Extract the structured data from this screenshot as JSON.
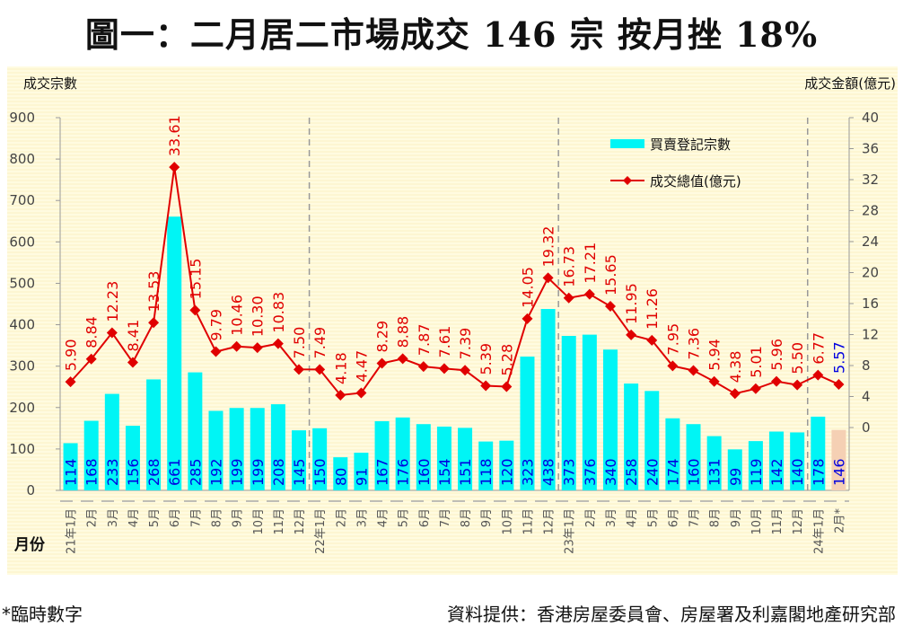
{
  "title": "圖一：二月居二市場成交 146 宗  按月挫 18%",
  "footnote": "*臨時數字",
  "source": "資料提供：香港房屋委員會、房屋署及利嘉閣地產研究部",
  "colors": {
    "bar": "#00f5f5",
    "bar_provisional": "#f5d0b4",
    "line": "#e00000",
    "bar_label": "#0000e0",
    "line_label": "#e00000",
    "line_label_provisional": "#0000e0"
  },
  "chart_data": {
    "type": "bar+line",
    "title": "圖一：二月居二市場成交 146 宗  按月挫 18%",
    "xlabel": "月份",
    "ylabel_left": "成交宗數",
    "ylabel_right": "成交金額(億元)",
    "ylim_left": [
      0,
      900
    ],
    "yticks_left": [
      "0",
      "100",
      "200",
      "300",
      "400",
      "500",
      "600",
      "700",
      "800",
      "900"
    ],
    "ylim_right": [
      0,
      40
    ],
    "yticks_right": [
      "0",
      "4",
      "8",
      "12",
      "16",
      "20",
      "24",
      "28",
      "32",
      "36",
      "40"
    ],
    "legend": [
      "買賣登記宗數",
      "成交總值(億元)"
    ],
    "legend_position": "top-right",
    "year_separators_after": [
      12,
      24,
      36
    ],
    "categories": [
      "21年1月",
      "2月",
      "3月",
      "4月",
      "5月",
      "6月",
      "7月",
      "8月",
      "9月",
      "10月",
      "11月",
      "12月",
      "22年1月",
      "2月",
      "3月",
      "4月",
      "5月",
      "6月",
      "7月",
      "8月",
      "9月",
      "10月",
      "11月",
      "12月",
      "23年1月",
      "2月",
      "3月",
      "4月",
      "5月",
      "6月",
      "7月",
      "8月",
      "9月",
      "10月",
      "11月",
      "12月",
      "24年1月",
      "2月*"
    ],
    "series": [
      {
        "name": "買賣登記宗數",
        "type": "bar",
        "axis": "left",
        "values": [
          114,
          168,
          233,
          156,
          268,
          661,
          285,
          192,
          199,
          199,
          208,
          145,
          150,
          80,
          91,
          167,
          176,
          160,
          154,
          151,
          118,
          120,
          323,
          438,
          373,
          376,
          340,
          258,
          240,
          174,
          160,
          131,
          99,
          119,
          142,
          140,
          178,
          146
        ]
      },
      {
        "name": "成交總值(億元)",
        "type": "line",
        "axis": "right",
        "values": [
          5.9,
          8.84,
          12.23,
          8.41,
          13.53,
          33.61,
          15.15,
          9.79,
          10.46,
          10.3,
          10.83,
          7.5,
          7.49,
          4.18,
          4.47,
          8.29,
          8.88,
          7.87,
          7.61,
          7.39,
          5.39,
          5.28,
          14.05,
          19.32,
          16.73,
          17.21,
          15.65,
          11.95,
          11.26,
          7.95,
          7.36,
          5.94,
          4.38,
          5.01,
          5.96,
          5.5,
          6.77,
          5.57
        ],
        "labels": [
          "5.90",
          "8.84",
          "12.23",
          "8.41",
          "13.53",
          "33.61",
          "15.15",
          "9.79",
          "10.46",
          "10.30",
          "10.83",
          "7.50",
          "7.49",
          "4.18",
          "4.47",
          "8.29",
          "8.88",
          "7.87",
          "7.61",
          "7.39",
          "5.39",
          "5.28",
          "14.05",
          "19.32",
          "16.73",
          "17.21",
          "15.65",
          "11.95",
          "11.26",
          "7.95",
          "7.36",
          "5.94",
          "4.38",
          "5.01",
          "5.96",
          "5.50",
          "6.77",
          "5.57"
        ]
      }
    ],
    "provisional_index": 37
  }
}
